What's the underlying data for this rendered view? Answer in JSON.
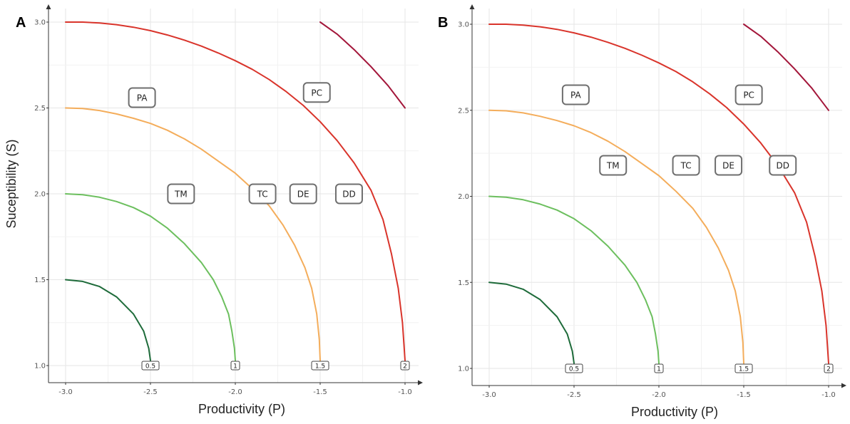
{
  "chart_data": [
    {
      "panel": "A",
      "type": "line",
      "xlabel": "Productivity (P)",
      "ylabel": "Suceptibility (S)",
      "xlim": [
        -3.0,
        -1.0
      ],
      "ylim": [
        1.0,
        3.0
      ],
      "xticks": [
        "-3.0",
        "-2.5",
        "-2.0",
        "-1.5",
        "-1.0"
      ],
      "yticks": [
        "1.0",
        "1.5",
        "2.0",
        "2.5",
        "3.0"
      ],
      "grid": true,
      "series": [
        {
          "level": "0.5",
          "color": "#1e6b3a",
          "points": [
            [
              -3.0,
              1.5
            ],
            [
              -2.9,
              1.49
            ],
            [
              -2.8,
              1.46
            ],
            [
              -2.7,
              1.4
            ],
            [
              -2.6,
              1.3
            ],
            [
              -2.54,
              1.2
            ],
            [
              -2.51,
              1.1
            ],
            [
              -2.5,
              1.03
            ]
          ]
        },
        {
          "level": "1",
          "color": "#6cbf5e",
          "points": [
            [
              -3.0,
              2.0
            ],
            [
              -2.9,
              1.995
            ],
            [
              -2.8,
              1.98
            ],
            [
              -2.7,
              1.955
            ],
            [
              -2.6,
              1.92
            ],
            [
              -2.5,
              1.87
            ],
            [
              -2.4,
              1.8
            ],
            [
              -2.3,
              1.71
            ],
            [
              -2.2,
              1.6
            ],
            [
              -2.13,
              1.5
            ],
            [
              -2.08,
              1.4
            ],
            [
              -2.04,
              1.3
            ],
            [
              -2.02,
              1.2
            ],
            [
              -2.005,
              1.1
            ],
            [
              -2.0,
              1.03
            ]
          ]
        },
        {
          "level": "1.5",
          "color": "#f4ad5b",
          "points": [
            [
              -3.0,
              2.5
            ],
            [
              -2.9,
              2.497
            ],
            [
              -2.8,
              2.485
            ],
            [
              -2.7,
              2.465
            ],
            [
              -2.6,
              2.44
            ],
            [
              -2.5,
              2.41
            ],
            [
              -2.4,
              2.37
            ],
            [
              -2.3,
              2.32
            ],
            [
              -2.2,
              2.26
            ],
            [
              -2.1,
              2.19
            ],
            [
              -2.0,
              2.12
            ],
            [
              -1.9,
              2.03
            ],
            [
              -1.8,
              1.93
            ],
            [
              -1.72,
              1.82
            ],
            [
              -1.65,
              1.7
            ],
            [
              -1.59,
              1.57
            ],
            [
              -1.55,
              1.45
            ],
            [
              -1.52,
              1.3
            ],
            [
              -1.505,
              1.15
            ],
            [
              -1.5,
              1.03
            ]
          ]
        },
        {
          "level": "2",
          "color": "#d9342b",
          "points": [
            [
              -3.0,
              3.0
            ],
            [
              -2.9,
              3.0
            ],
            [
              -2.8,
              2.995
            ],
            [
              -2.7,
              2.985
            ],
            [
              -2.6,
              2.97
            ],
            [
              -2.5,
              2.95
            ],
            [
              -2.4,
              2.925
            ],
            [
              -2.3,
              2.895
            ],
            [
              -2.2,
              2.86
            ],
            [
              -2.1,
              2.82
            ],
            [
              -2.0,
              2.775
            ],
            [
              -1.9,
              2.725
            ],
            [
              -1.8,
              2.665
            ],
            [
              -1.7,
              2.595
            ],
            [
              -1.6,
              2.515
            ],
            [
              -1.5,
              2.42
            ],
            [
              -1.4,
              2.31
            ],
            [
              -1.3,
              2.18
            ],
            [
              -1.2,
              2.02
            ],
            [
              -1.13,
              1.85
            ],
            [
              -1.08,
              1.65
            ],
            [
              -1.04,
              1.45
            ],
            [
              -1.015,
              1.25
            ],
            [
              -1.0,
              1.03
            ]
          ]
        },
        {
          "level": "",
          "color": "#a3163a",
          "points": [
            [
              -1.5,
              3.0
            ],
            [
              -1.4,
              2.93
            ],
            [
              -1.3,
              2.84
            ],
            [
              -1.2,
              2.74
            ],
            [
              -1.1,
              2.63
            ],
            [
              -1.0,
              2.5
            ]
          ]
        }
      ],
      "level_labels": [
        {
          "text": "0.5",
          "x": -2.5,
          "y": 1.0
        },
        {
          "text": "1",
          "x": -2.0,
          "y": 1.0
        },
        {
          "text": "1.5",
          "x": -1.5,
          "y": 1.0
        },
        {
          "text": "2",
          "x": -1.0,
          "y": 1.0
        }
      ],
      "region_labels": [
        {
          "text": "PA",
          "x": -2.55,
          "y": 2.56
        },
        {
          "text": "PC",
          "x": -1.52,
          "y": 2.59
        },
        {
          "text": "TM",
          "x": -2.32,
          "y": 2.0
        },
        {
          "text": "TC",
          "x": -1.84,
          "y": 2.0
        },
        {
          "text": "DE",
          "x": -1.6,
          "y": 2.0
        },
        {
          "text": "DD",
          "x": -1.33,
          "y": 2.0
        }
      ]
    },
    {
      "panel": "B",
      "type": "line",
      "xlabel": "Productivity (P)",
      "ylabel": "",
      "xlim": [
        -3.0,
        -1.0
      ],
      "ylim": [
        1.0,
        3.0
      ],
      "xticks": [
        "-3.0",
        "-2.5",
        "-2.0",
        "-1.5",
        "-1.0"
      ],
      "yticks": [
        "1.0",
        "1.5",
        "2.0",
        "2.5",
        "3.0"
      ],
      "grid": true,
      "series": [
        {
          "level": "0.5",
          "color": "#1e6b3a",
          "points": [
            [
              -3.0,
              1.5
            ],
            [
              -2.9,
              1.49
            ],
            [
              -2.8,
              1.46
            ],
            [
              -2.7,
              1.4
            ],
            [
              -2.6,
              1.3
            ],
            [
              -2.54,
              1.2
            ],
            [
              -2.51,
              1.1
            ],
            [
              -2.5,
              1.03
            ]
          ]
        },
        {
          "level": "1",
          "color": "#6cbf5e",
          "points": [
            [
              -3.0,
              2.0
            ],
            [
              -2.9,
              1.995
            ],
            [
              -2.8,
              1.98
            ],
            [
              -2.7,
              1.955
            ],
            [
              -2.6,
              1.92
            ],
            [
              -2.5,
              1.87
            ],
            [
              -2.4,
              1.8
            ],
            [
              -2.3,
              1.71
            ],
            [
              -2.2,
              1.6
            ],
            [
              -2.13,
              1.5
            ],
            [
              -2.08,
              1.4
            ],
            [
              -2.04,
              1.3
            ],
            [
              -2.02,
              1.2
            ],
            [
              -2.005,
              1.1
            ],
            [
              -2.0,
              1.03
            ]
          ]
        },
        {
          "level": "1.5",
          "color": "#f4ad5b",
          "points": [
            [
              -3.0,
              2.5
            ],
            [
              -2.9,
              2.497
            ],
            [
              -2.8,
              2.485
            ],
            [
              -2.7,
              2.465
            ],
            [
              -2.6,
              2.44
            ],
            [
              -2.5,
              2.41
            ],
            [
              -2.4,
              2.37
            ],
            [
              -2.3,
              2.32
            ],
            [
              -2.2,
              2.26
            ],
            [
              -2.1,
              2.19
            ],
            [
              -2.0,
              2.12
            ],
            [
              -1.9,
              2.03
            ],
            [
              -1.8,
              1.93
            ],
            [
              -1.72,
              1.82
            ],
            [
              -1.65,
              1.7
            ],
            [
              -1.59,
              1.57
            ],
            [
              -1.55,
              1.45
            ],
            [
              -1.52,
              1.3
            ],
            [
              -1.505,
              1.15
            ],
            [
              -1.5,
              1.03
            ]
          ]
        },
        {
          "level": "2",
          "color": "#d9342b",
          "points": [
            [
              -3.0,
              3.0
            ],
            [
              -2.9,
              3.0
            ],
            [
              -2.8,
              2.995
            ],
            [
              -2.7,
              2.985
            ],
            [
              -2.6,
              2.97
            ],
            [
              -2.5,
              2.95
            ],
            [
              -2.4,
              2.925
            ],
            [
              -2.3,
              2.895
            ],
            [
              -2.2,
              2.86
            ],
            [
              -2.1,
              2.82
            ],
            [
              -2.0,
              2.775
            ],
            [
              -1.9,
              2.725
            ],
            [
              -1.8,
              2.665
            ],
            [
              -1.7,
              2.595
            ],
            [
              -1.6,
              2.515
            ],
            [
              -1.5,
              2.42
            ],
            [
              -1.4,
              2.31
            ],
            [
              -1.3,
              2.18
            ],
            [
              -1.2,
              2.02
            ],
            [
              -1.13,
              1.85
            ],
            [
              -1.08,
              1.65
            ],
            [
              -1.04,
              1.45
            ],
            [
              -1.015,
              1.25
            ],
            [
              -1.0,
              1.03
            ]
          ]
        },
        {
          "level": "",
          "color": "#a3163a",
          "points": [
            [
              -1.5,
              3.0
            ],
            [
              -1.4,
              2.93
            ],
            [
              -1.3,
              2.84
            ],
            [
              -1.2,
              2.74
            ],
            [
              -1.1,
              2.63
            ],
            [
              -1.0,
              2.5
            ]
          ]
        }
      ],
      "level_labels": [
        {
          "text": "0.5",
          "x": -2.5,
          "y": 1.0
        },
        {
          "text": "1",
          "x": -2.0,
          "y": 1.0
        },
        {
          "text": "1.5",
          "x": -1.5,
          "y": 1.0
        },
        {
          "text": "2",
          "x": -1.0,
          "y": 1.0
        }
      ],
      "region_labels": [
        {
          "text": "PA",
          "x": -2.49,
          "y": 2.59
        },
        {
          "text": "PC",
          "x": -1.47,
          "y": 2.59
        },
        {
          "text": "TM",
          "x": -2.27,
          "y": 2.18
        },
        {
          "text": "TC",
          "x": -1.84,
          "y": 2.18
        },
        {
          "text": "DE",
          "x": -1.59,
          "y": 2.18
        },
        {
          "text": "DD",
          "x": -1.27,
          "y": 2.18
        }
      ]
    }
  ]
}
